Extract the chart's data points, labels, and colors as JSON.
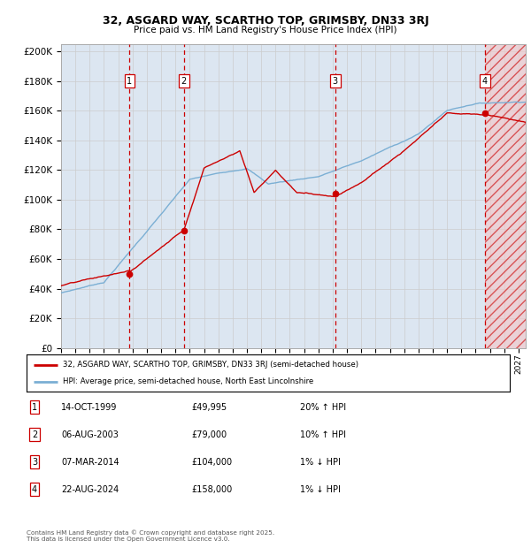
{
  "title1": "32, ASGARD WAY, SCARTHO TOP, GRIMSBY, DN33 3RJ",
  "title2": "Price paid vs. HM Land Registry's House Price Index (HPI)",
  "ylabel_ticks": [
    "£0",
    "£20K",
    "£40K",
    "£60K",
    "£80K",
    "£100K",
    "£120K",
    "£140K",
    "£160K",
    "£180K",
    "£200K"
  ],
  "ytick_values": [
    0,
    20000,
    40000,
    60000,
    80000,
    100000,
    120000,
    140000,
    160000,
    180000,
    200000
  ],
  "ylim": [
    0,
    205000
  ],
  "xlim_start": 1995.0,
  "xlim_end": 2027.5,
  "grid_color": "#cccccc",
  "bg_color": "#dce6f1",
  "red_color": "#cc0000",
  "blue_color": "#7bafd4",
  "sale_dates": [
    1999.79,
    2003.59,
    2014.18,
    2024.64
  ],
  "sale_prices": [
    49995,
    79000,
    104000,
    158000
  ],
  "sale_labels": [
    "1",
    "2",
    "3",
    "4"
  ],
  "sale_date_texts": [
    "14-OCT-1999",
    "06-AUG-2003",
    "07-MAR-2014",
    "22-AUG-2024"
  ],
  "sale_price_texts": [
    "£49,995",
    "£79,000",
    "£104,000",
    "£158,000"
  ],
  "sale_hpi_texts": [
    "20% ↑ HPI",
    "10% ↑ HPI",
    "1% ↓ HPI",
    "1% ↓ HPI"
  ],
  "legend_line1": "32, ASGARD WAY, SCARTHO TOP, GRIMSBY, DN33 3RJ (semi-detached house)",
  "legend_line2": "HPI: Average price, semi-detached house, North East Lincolnshire",
  "footnote": "Contains HM Land Registry data © Crown copyright and database right 2025.\nThis data is licensed under the Open Government Licence v3.0."
}
